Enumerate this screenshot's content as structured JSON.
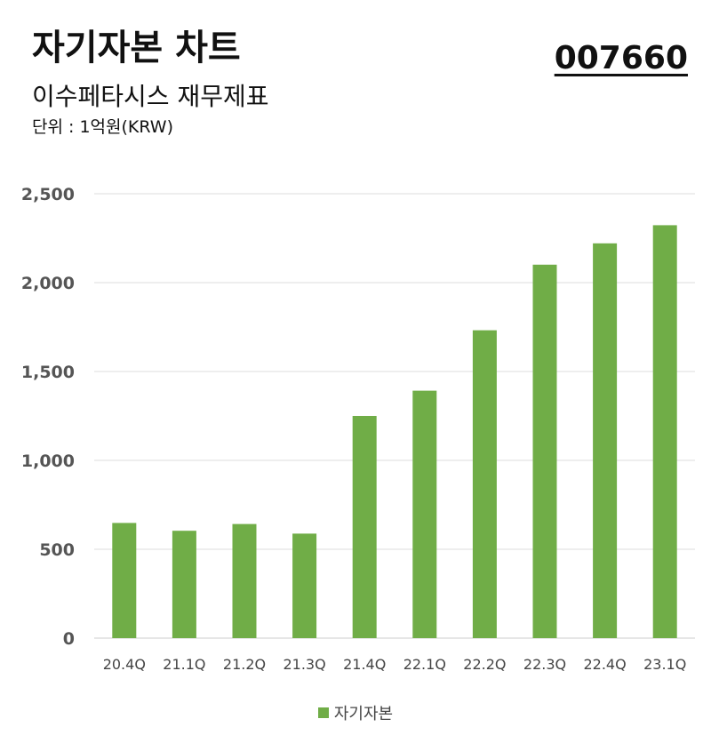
{
  "header": {
    "title": "자기자본 차트",
    "code": "007660",
    "subtitle": "이수페타시스 재무제표",
    "unit": "단위 : 1억원(KRW)"
  },
  "colors": {
    "bar": "#70ad47",
    "grid": "#dddddd",
    "axis": "#cccccc"
  },
  "chart_data": {
    "type": "bar",
    "categories": [
      "20.4Q",
      "21.1Q",
      "21.2Q",
      "21.3Q",
      "21.4Q",
      "22.1Q",
      "22.2Q",
      "22.3Q",
      "22.4Q",
      "23.1Q"
    ],
    "series": [
      {
        "name": "자기자본",
        "values": [
          648,
          604,
          642,
          588,
          1250,
          1392,
          1732,
          2101,
          2221,
          2323
        ]
      }
    ],
    "yticks": [
      "0",
      "500",
      "1,000",
      "1,500",
      "2,000",
      "2,500"
    ],
    "ylim": [
      0,
      2500
    ],
    "grid": true,
    "legend": "bottom-center"
  }
}
